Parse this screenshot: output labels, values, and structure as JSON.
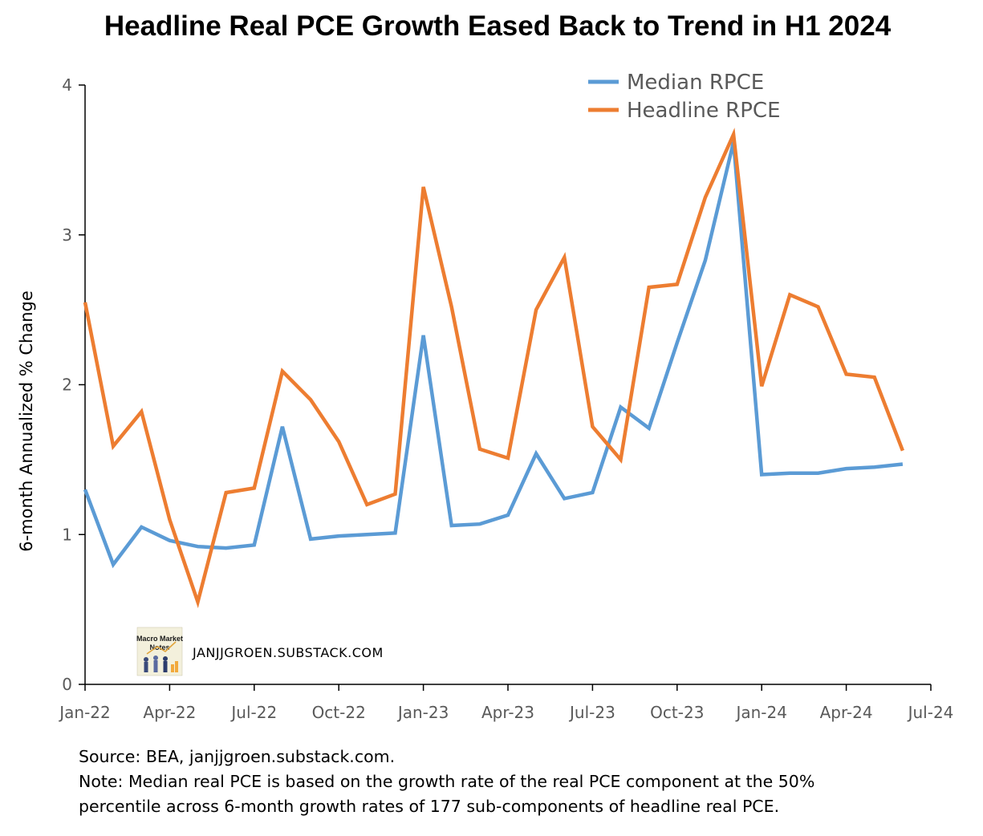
{
  "chart_data": {
    "type": "line",
    "title": "Headline Real PCE Growth Eased Back to Trend in H1 2024",
    "ylabel": "6-month Annualized % Change",
    "xlabel": "",
    "ylim": [
      0,
      4
    ],
    "yticks": [
      "0",
      "1",
      "2",
      "3",
      "4"
    ],
    "xticks": [
      "Jan-22",
      "Apr-22",
      "Jul-22",
      "Oct-22",
      "Jan-23",
      "Apr-23",
      "Jul-23",
      "Oct-23",
      "Jan-24",
      "Apr-24",
      "Jul-24"
    ],
    "grid": false,
    "legend_position": "top-right",
    "x": [
      "Jan-22",
      "Feb-22",
      "Mar-22",
      "Apr-22",
      "May-22",
      "Jun-22",
      "Jul-22",
      "Aug-22",
      "Sep-22",
      "Oct-22",
      "Nov-22",
      "Dec-22",
      "Jan-23",
      "Feb-23",
      "Mar-23",
      "Apr-23",
      "May-23",
      "Jun-23",
      "Jul-23",
      "Aug-23",
      "Sep-23",
      "Oct-23",
      "Nov-23",
      "Dec-23",
      "Jan-24",
      "Feb-24",
      "Mar-24",
      "Apr-24",
      "May-24",
      "Jun-24"
    ],
    "series": [
      {
        "name": "Median RPCE",
        "color": "#5B9BD5",
        "values": [
          1.3,
          0.8,
          1.05,
          0.96,
          0.92,
          0.91,
          0.93,
          1.72,
          0.97,
          0.99,
          1.0,
          1.01,
          2.33,
          1.06,
          1.07,
          1.13,
          1.54,
          1.24,
          1.28,
          1.85,
          1.71,
          2.28,
          2.83,
          3.62,
          1.4,
          1.41,
          1.41,
          1.44,
          1.45,
          1.47
        ]
      },
      {
        "name": "Headline RPCE",
        "color": "#ED7D31",
        "values": [
          2.55,
          1.59,
          1.82,
          1.1,
          0.55,
          1.28,
          1.31,
          2.09,
          1.9,
          1.62,
          1.2,
          1.27,
          3.32,
          2.52,
          1.57,
          1.51,
          2.5,
          2.85,
          1.72,
          1.5,
          2.65,
          2.67,
          3.25,
          3.67,
          1.99,
          2.6,
          2.52,
          2.07,
          2.05,
          1.56
        ]
      }
    ]
  },
  "watermark": {
    "text": "JANJJGROEN.SUBSTACK.COM",
    "logo_text": [
      "Macro Market",
      "Notes"
    ]
  },
  "notes": {
    "source": "Source: BEA, janjjgroen.substack.com.",
    "note_line1": "Note: Median real PCE is based on the growth rate of the real PCE component at the 50%",
    "note_line2": "percentile across 6-month growth rates of 177 sub-components of headline real PCE."
  }
}
